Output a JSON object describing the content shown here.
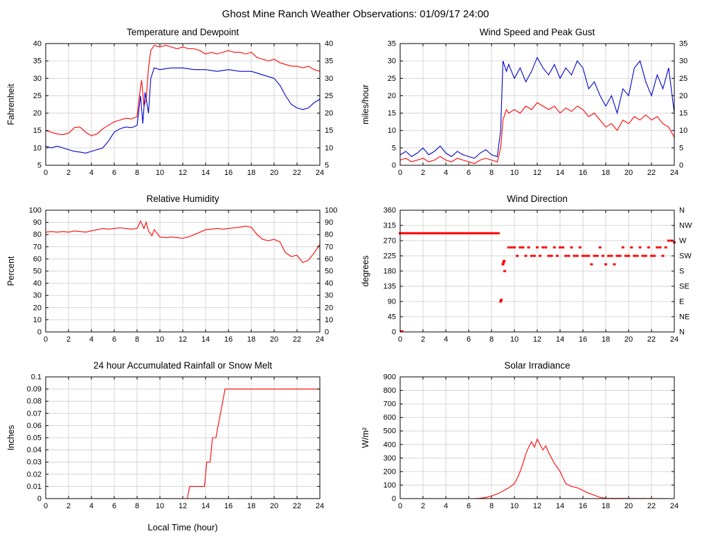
{
  "title": "Ghost Mine Ranch Weather Observations: 01/09/17 24:00",
  "colors": {
    "red": "#ff0000",
    "blue": "#0000cc",
    "grid": "#d6d6d6",
    "frame": "#000000"
  },
  "chart_data": [
    {
      "id": "temperature-dewpoint",
      "type": "line",
      "title": "Temperature and Dewpoint",
      "ylabel": "Fahrenheit",
      "xlabel": "",
      "xlim": [
        0,
        24
      ],
      "ylim": [
        5,
        40
      ],
      "xticks": [
        0,
        2,
        4,
        6,
        8,
        10,
        12,
        14,
        16,
        18,
        20,
        22,
        24
      ],
      "yticks": [
        5,
        10,
        15,
        20,
        25,
        30,
        35,
        40
      ],
      "mirror_right": true,
      "series": [
        {
          "name": "temperature",
          "color": "#ff0000",
          "x": [
            0,
            0.5,
            1,
            1.5,
            2,
            2.5,
            3,
            3.5,
            4,
            4.5,
            5,
            5.5,
            6,
            6.5,
            7,
            7.5,
            8,
            8.2,
            8.4,
            8.6,
            8.8,
            9,
            9.2,
            9.5,
            10,
            10.5,
            11,
            11.5,
            12,
            12.5,
            13,
            13.5,
            14,
            14.5,
            15,
            15.5,
            16,
            16.5,
            17,
            17.5,
            18,
            18.5,
            19,
            19.5,
            20,
            20.5,
            21,
            21.5,
            22,
            22.5,
            23,
            23.5,
            24
          ],
          "y": [
            15,
            14.5,
            14,
            13.8,
            14.2,
            15.8,
            16,
            14.5,
            13.5,
            14,
            15.5,
            16.5,
            17.5,
            18,
            18.5,
            18.3,
            19,
            25,
            29.5,
            22,
            24,
            33,
            38,
            39.5,
            39,
            39.5,
            39,
            38.5,
            39,
            38.5,
            38.5,
            38,
            37,
            37.5,
            37,
            37.5,
            38,
            37.5,
            37.5,
            37,
            37.5,
            36,
            35.5,
            35,
            35.5,
            34.5,
            34,
            33.5,
            33.5,
            33,
            33.5,
            32.5,
            32
          ]
        },
        {
          "name": "dewpoint",
          "color": "#0000cc",
          "x": [
            0,
            0.5,
            1,
            1.5,
            2,
            2.5,
            3,
            3.5,
            4,
            4.5,
            5,
            5.5,
            6,
            6.5,
            7,
            7.5,
            8,
            8.3,
            8.5,
            8.7,
            9,
            9.2,
            9.5,
            10,
            11,
            12,
            13,
            14,
            15,
            16,
            17,
            18,
            18.5,
            19,
            19.5,
            20,
            20.5,
            21,
            21.5,
            22,
            22.5,
            23,
            23.5,
            24
          ],
          "y": [
            10.5,
            10,
            10.5,
            10,
            9.5,
            9,
            8.8,
            8.5,
            9,
            9.5,
            10,
            12,
            14.5,
            15.5,
            16,
            15.8,
            16.5,
            25,
            17,
            26,
            20,
            30,
            33,
            32.5,
            33,
            33,
            32.5,
            32.5,
            32,
            32.5,
            32,
            32,
            31.5,
            31,
            30.5,
            30,
            28,
            25,
            22.5,
            21.5,
            21,
            21.5,
            23,
            24
          ]
        }
      ]
    },
    {
      "id": "wind-speed-gust",
      "type": "line",
      "title": "Wind Speed and Peak Gust",
      "ylabel": "miles/hour",
      "xlabel": "",
      "xlim": [
        0,
        24
      ],
      "ylim": [
        0,
        35
      ],
      "xticks": [
        0,
        2,
        4,
        6,
        8,
        10,
        12,
        14,
        16,
        18,
        20,
        22,
        24
      ],
      "yticks": [
        0,
        5,
        10,
        15,
        20,
        25,
        30,
        35
      ],
      "mirror_right": true,
      "series": [
        {
          "name": "peak-gust",
          "color": "#0000cc",
          "x": [
            0,
            0.5,
            1,
            1.5,
            2,
            2.5,
            3,
            3.5,
            4,
            4.5,
            5,
            5.5,
            6,
            6.5,
            7,
            7.5,
            8,
            8.5,
            8.8,
            9,
            9.3,
            9.5,
            10,
            10.5,
            11,
            11.5,
            12,
            12.5,
            13,
            13.5,
            14,
            14.5,
            15,
            15.5,
            16,
            16.5,
            17,
            17.5,
            18,
            18.5,
            19,
            19.5,
            20,
            20.5,
            21,
            21.5,
            22,
            22.5,
            23,
            23.5,
            24
          ],
          "y": [
            3,
            4,
            2.5,
            3.5,
            5,
            3,
            4,
            5.5,
            3.5,
            2.5,
            4,
            3,
            2.5,
            2,
            3.5,
            4.5,
            3,
            2.5,
            10,
            30,
            27,
            29,
            25,
            28,
            24,
            27,
            31,
            28,
            26,
            29,
            25,
            28,
            26,
            30,
            28,
            22,
            24,
            20,
            17,
            20,
            15,
            22,
            20,
            28,
            30,
            24,
            20,
            26,
            22,
            28,
            15
          ]
        },
        {
          "name": "wind-speed",
          "color": "#ff0000",
          "x": [
            0,
            0.5,
            1,
            1.5,
            2,
            2.5,
            3,
            3.5,
            4,
            4.5,
            5,
            5.5,
            6,
            6.5,
            7,
            7.5,
            8,
            8.5,
            8.8,
            9,
            9.3,
            9.5,
            10,
            10.5,
            11,
            11.5,
            12,
            12.5,
            13,
            13.5,
            14,
            14.5,
            15,
            15.5,
            16,
            16.5,
            17,
            17.5,
            18,
            18.5,
            19,
            19.5,
            20,
            20.5,
            21,
            21.5,
            22,
            22.5,
            23,
            23.5,
            24
          ],
          "y": [
            1.5,
            2,
            1,
            1.5,
            2,
            1,
            1.5,
            2.5,
            1.5,
            1,
            2,
            1.5,
            1,
            0.5,
            1.5,
            2,
            1.5,
            1,
            5,
            13,
            16,
            15,
            16,
            15,
            17,
            16,
            18,
            17,
            16,
            17,
            15,
            16.5,
            15.5,
            17,
            16,
            14,
            15,
            13,
            11,
            12,
            10,
            13,
            12,
            14,
            13,
            14.5,
            13,
            14,
            12,
            11,
            8
          ]
        }
      ]
    },
    {
      "id": "relative-humidity",
      "type": "line",
      "title": "Relative Humidity",
      "ylabel": "Percent",
      "xlabel": "",
      "xlim": [
        0,
        24
      ],
      "ylim": [
        0,
        100
      ],
      "xticks": [
        0,
        2,
        4,
        6,
        8,
        10,
        12,
        14,
        16,
        18,
        20,
        22,
        24
      ],
      "yticks": [
        0,
        10,
        20,
        30,
        40,
        50,
        60,
        70,
        80,
        90,
        100
      ],
      "mirror_right": true,
      "series": [
        {
          "name": "humidity",
          "color": "#ff0000",
          "x": [
            0,
            0.5,
            1,
            1.5,
            2,
            2.5,
            3,
            3.5,
            4,
            4.5,
            5,
            5.5,
            6,
            6.5,
            7,
            7.5,
            8,
            8.3,
            8.6,
            8.8,
            9,
            9.3,
            9.5,
            10,
            10.5,
            11,
            11.5,
            12,
            12.5,
            13,
            13.5,
            14,
            14.5,
            15,
            15.5,
            16,
            16.5,
            17,
            17.5,
            18,
            18.5,
            19,
            19.5,
            20,
            20.5,
            21,
            21.5,
            22,
            22.5,
            23,
            23.5,
            24
          ],
          "y": [
            82,
            82.5,
            82,
            82.5,
            82,
            83,
            82.5,
            82,
            83,
            84,
            85,
            84.5,
            85,
            85.5,
            85,
            84.5,
            85,
            91,
            85,
            90,
            83,
            79,
            84,
            78,
            77.5,
            78,
            77.5,
            77,
            78,
            80,
            82,
            84,
            84.5,
            85,
            84.5,
            85,
            85.5,
            86,
            87,
            86,
            80,
            76,
            75,
            76,
            74,
            65,
            62,
            63,
            57,
            59,
            65,
            72
          ]
        }
      ]
    },
    {
      "id": "wind-direction",
      "type": "scatter",
      "title": "Wind Direction",
      "ylabel": "degrees",
      "xlabel": "",
      "xlim": [
        0,
        24
      ],
      "ylim": [
        0,
        360
      ],
      "xticks": [
        0,
        2,
        4,
        6,
        8,
        10,
        12,
        14,
        16,
        18,
        20,
        22,
        24
      ],
      "yticks": [
        0,
        45,
        90,
        135,
        180,
        225,
        270,
        315,
        360
      ],
      "mirror_right": false,
      "right_tick_labels": [
        "N",
        "NE",
        "E",
        "SE",
        "S",
        "SW",
        "W",
        "NW",
        "N"
      ],
      "series": [
        {
          "name": "direction",
          "color": "#ff0000",
          "x": [
            0.15,
            0,
            0.2,
            0.4,
            0.6,
            0.8,
            1,
            1.2,
            1.4,
            1.6,
            1.8,
            2,
            2.2,
            2.4,
            2.6,
            2.8,
            3,
            3.2,
            3.4,
            3.6,
            3.8,
            4,
            4.2,
            4.4,
            4.6,
            4.8,
            5,
            5.2,
            5.4,
            5.6,
            5.8,
            6,
            6.2,
            6.4,
            6.6,
            6.8,
            7,
            7.2,
            7.4,
            7.6,
            7.8,
            8,
            8.2,
            8.4,
            8.6,
            8.8,
            8.85,
            9,
            9.05,
            9.1,
            9.15,
            9.5,
            9.75,
            10,
            10.25,
            10.5,
            10.75,
            11,
            11.25,
            11.5,
            11.75,
            12,
            12.25,
            12.5,
            12.75,
            13,
            13.25,
            13.5,
            13.75,
            14,
            14.25,
            14.5,
            14.75,
            15,
            15.25,
            15.5,
            15.75,
            16,
            16.25,
            16.5,
            16.75,
            17,
            17.25,
            17.5,
            17.75,
            18,
            18.25,
            18.5,
            18.75,
            19,
            19.25,
            19.5,
            19.75,
            20,
            20.25,
            20.5,
            20.75,
            21,
            21.25,
            21.5,
            21.75,
            22,
            22.25,
            22.5,
            22.75,
            23,
            23.25,
            23.5,
            23.75,
            24
          ],
          "y": [
            2,
            292,
            292,
            292,
            292,
            292,
            292,
            292,
            292,
            292,
            292,
            292,
            292,
            292,
            292,
            292,
            292,
            292,
            292,
            292,
            292,
            292,
            292,
            292,
            292,
            292,
            292,
            292,
            292,
            292,
            292,
            292,
            292,
            292,
            292,
            292,
            292,
            292,
            292,
            292,
            292,
            292,
            292,
            292,
            292,
            90,
            95,
            200,
            205,
            210,
            180,
            250,
            250,
            250,
            225,
            250,
            250,
            225,
            250,
            225,
            225,
            250,
            225,
            250,
            250,
            225,
            225,
            250,
            225,
            250,
            250,
            225,
            225,
            250,
            225,
            225,
            250,
            225,
            225,
            225,
            200,
            225,
            225,
            250,
            225,
            200,
            225,
            225,
            200,
            225,
            225,
            250,
            225,
            225,
            250,
            225,
            225,
            250,
            225,
            225,
            250,
            225,
            225,
            250,
            250,
            225,
            250,
            270,
            270,
            265
          ]
        }
      ]
    },
    {
      "id": "rainfall",
      "type": "line",
      "title": "24 hour Accumulated Rainfall or Snow Melt",
      "ylabel": "Inches",
      "xlabel": "Local Time (hour)",
      "xlim": [
        0,
        24
      ],
      "ylim": [
        0,
        0.1
      ],
      "xticks": [
        0,
        2,
        4,
        6,
        8,
        10,
        12,
        14,
        16,
        18,
        20,
        22,
        24
      ],
      "yticks": [
        0,
        0.01,
        0.02,
        0.03,
        0.04,
        0.05,
        0.06,
        0.07,
        0.08,
        0.09,
        0.1
      ],
      "ytick_labels": [
        "0",
        "0.01",
        "0.02",
        "0.03",
        "0.04",
        "0.05",
        "0.06",
        "0.07",
        "0.08",
        "0.09",
        "0.1"
      ],
      "mirror_right": false,
      "series": [
        {
          "name": "rainfall",
          "color": "#ff0000",
          "x": [
            0,
            12.4,
            12.6,
            13.9,
            14.1,
            14.4,
            14.6,
            14.9,
            15.1,
            15.3,
            15.5,
            15.7,
            16,
            24
          ],
          "y": [
            0,
            0,
            0.01,
            0.01,
            0.03,
            0.03,
            0.05,
            0.05,
            0.06,
            0.07,
            0.08,
            0.09,
            0.09,
            0.09
          ]
        }
      ]
    },
    {
      "id": "solar-irradiance",
      "type": "line",
      "title": "Solar Irradiance",
      "ylabel": "W/m²",
      "xlabel": "",
      "xlim": [
        0,
        24
      ],
      "ylim": [
        0,
        900
      ],
      "xticks": [
        0,
        2,
        4,
        6,
        8,
        10,
        12,
        14,
        16,
        18,
        20,
        22,
        24
      ],
      "yticks": [
        0,
        100,
        200,
        300,
        400,
        500,
        600,
        700,
        800,
        900
      ],
      "mirror_right": false,
      "series": [
        {
          "name": "solar",
          "color": "#ff0000",
          "x": [
            0,
            6.5,
            7,
            7.5,
            8,
            8.5,
            9,
            9.5,
            10,
            10.25,
            10.5,
            10.75,
            11,
            11.25,
            11.5,
            11.75,
            12,
            12.25,
            12.5,
            12.75,
            13,
            13.25,
            13.5,
            14,
            14.5,
            15,
            15.5,
            16,
            16.5,
            17,
            17.5,
            18,
            24
          ],
          "y": [
            0,
            0,
            2,
            8,
            20,
            35,
            55,
            80,
            110,
            150,
            200,
            260,
            330,
            380,
            420,
            380,
            440,
            400,
            360,
            390,
            340,
            300,
            260,
            200,
            110,
            90,
            80,
            60,
            40,
            25,
            8,
            2,
            0
          ]
        }
      ]
    }
  ]
}
